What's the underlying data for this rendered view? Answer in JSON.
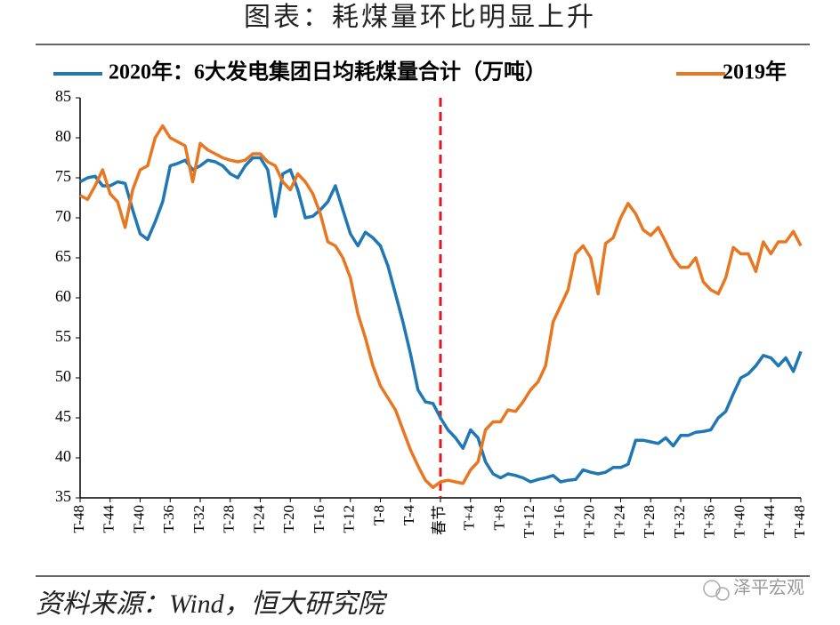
{
  "chart_data": {
    "type": "line",
    "title": "图表：耗煤量环比明显上升",
    "source": "资料来源：Wind，恒大研究院",
    "watermark": "泽平宏观",
    "x": [
      -48,
      -47,
      -46,
      -45,
      -44,
      -43,
      -42,
      -41,
      -40,
      -39,
      -38,
      -37,
      -36,
      -35,
      -34,
      -33,
      -32,
      -31,
      -30,
      -29,
      -28,
      -27,
      -26,
      -25,
      -24,
      -23,
      -22,
      -21,
      -20,
      -19,
      -18,
      -17,
      -16,
      -15,
      -14,
      -13,
      -12,
      -11,
      -10,
      -9,
      -8,
      -7,
      -6,
      -5,
      -4,
      -3,
      -2,
      -1,
      0,
      1,
      2,
      3,
      4,
      5,
      6,
      7,
      8,
      9,
      10,
      11,
      12,
      13,
      14,
      15,
      16,
      17,
      18,
      19,
      20,
      21,
      22,
      23,
      24,
      25,
      26,
      27,
      28,
      29,
      30,
      31,
      32,
      33,
      34,
      35,
      36,
      37,
      38,
      39,
      40,
      41,
      42,
      43,
      44,
      45,
      46,
      47,
      48
    ],
    "series": [
      {
        "name": "2020年：6大发电集团日均耗煤量合计（万吨）",
        "color": "#1f77b4",
        "values": [
          74.5,
          75,
          75.2,
          74,
          74,
          74.5,
          74.3,
          71,
          68,
          67.3,
          69.5,
          72,
          76.5,
          76.8,
          77.2,
          76,
          76.5,
          77.2,
          77,
          76.5,
          75.5,
          75,
          76.5,
          77.5,
          77.5,
          76,
          70.2,
          75.5,
          76,
          73.5,
          70,
          70.2,
          71,
          72,
          74,
          71,
          68,
          66.5,
          68.2,
          67.5,
          66.5,
          64,
          60.5,
          57,
          53,
          48.5,
          47,
          46.8,
          45,
          43.5,
          42.5,
          41.2,
          43.5,
          42.5,
          39.5,
          38,
          37.5,
          38,
          37.8,
          37.5,
          37,
          37.3,
          37.5,
          37.8,
          37,
          37.2,
          37.3,
          38.5,
          38.2,
          38,
          38.2,
          38.8,
          38.8,
          39.2,
          42.2,
          42.2,
          42,
          41.8,
          42.5,
          41.5,
          42.8,
          42.8,
          43.2,
          43.3,
          43.5,
          45,
          45.8,
          48,
          50,
          50.5,
          51.5,
          52.8,
          52.5,
          51.5,
          52.5,
          50.8,
          53.3
        ]
      },
      {
        "name": "2019年",
        "color": "#e87722",
        "values": [
          72.8,
          72.3,
          74,
          76,
          73,
          72,
          68.8,
          73.5,
          76,
          76.5,
          80,
          81.5,
          80,
          79.5,
          79,
          74.5,
          79.3,
          78.5,
          78,
          77.5,
          77.2,
          77,
          77.2,
          78,
          78,
          77,
          76.5,
          74.5,
          73.5,
          75.5,
          74.5,
          73,
          70.5,
          67,
          66.5,
          65,
          62.5,
          58,
          55,
          51.5,
          49,
          47.5,
          46,
          43.5,
          41,
          39,
          37.2,
          36.3,
          37,
          37.2,
          37,
          36.8,
          38.5,
          39.5,
          43.5,
          44.5,
          44.5,
          46,
          45.8,
          47,
          48.5,
          49.5,
          51.5,
          57,
          59,
          61,
          65.5,
          66.5,
          65,
          60.5,
          66.8,
          67.5,
          70,
          71.8,
          70.5,
          68.5,
          67.8,
          68.8,
          67,
          65,
          63.8,
          63.8,
          65,
          62,
          61,
          60.5,
          62.5,
          66.3,
          65.5,
          65.5,
          63.3,
          67,
          65.5,
          67,
          67,
          68.3,
          66.5
        ]
      }
    ],
    "xlim": [
      -48,
      48
    ],
    "xticks": [
      {
        "value": -48,
        "label": "T-48"
      },
      {
        "value": -44,
        "label": "T-44"
      },
      {
        "value": -40,
        "label": "T-40"
      },
      {
        "value": -36,
        "label": "T-36"
      },
      {
        "value": -32,
        "label": "T-32"
      },
      {
        "value": -28,
        "label": "T-28"
      },
      {
        "value": -24,
        "label": "T-24"
      },
      {
        "value": -20,
        "label": "T-20"
      },
      {
        "value": -16,
        "label": "T-16"
      },
      {
        "value": -12,
        "label": "T-12"
      },
      {
        "value": -8,
        "label": "T-8"
      },
      {
        "value": -4,
        "label": "T-4"
      },
      {
        "value": 0,
        "label": "春节"
      },
      {
        "value": 4,
        "label": "T+4"
      },
      {
        "value": 8,
        "label": "T+8"
      },
      {
        "value": 12,
        "label": "T+12"
      },
      {
        "value": 16,
        "label": "T+16"
      },
      {
        "value": 20,
        "label": "T+20"
      },
      {
        "value": 24,
        "label": "T+24"
      },
      {
        "value": 28,
        "label": "T+28"
      },
      {
        "value": 32,
        "label": "T+32"
      },
      {
        "value": 36,
        "label": "T+36"
      },
      {
        "value": 40,
        "label": "T+40"
      },
      {
        "value": 44,
        "label": "T+44"
      },
      {
        "value": 48,
        "label": "T+48"
      }
    ],
    "ylim": [
      35,
      85
    ],
    "yticks": [
      35,
      40,
      45,
      50,
      55,
      60,
      65,
      70,
      75,
      80,
      85
    ],
    "vline": {
      "x": 0,
      "color": "#e8141b"
    },
    "grid": false,
    "legend": "top"
  }
}
